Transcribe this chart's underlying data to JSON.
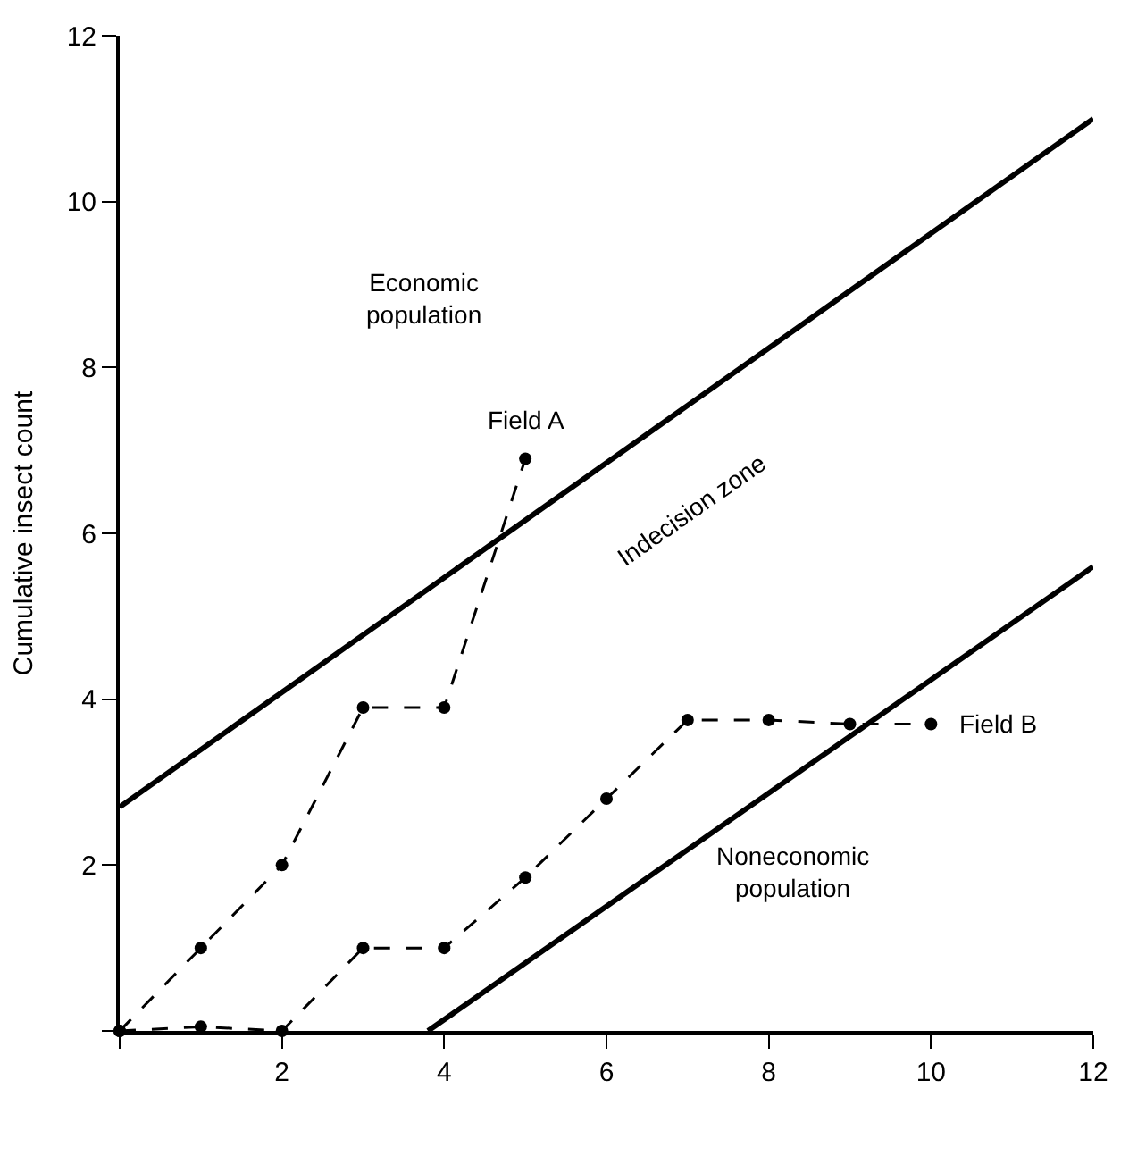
{
  "chart_data": {
    "type": "line",
    "ylabel": "Cumulative insect count",
    "xlim": [
      0,
      12
    ],
    "ylim": [
      0,
      12
    ],
    "xticks": [
      {
        "value": 0,
        "label": null
      },
      2,
      4,
      6,
      8,
      10,
      12
    ],
    "yticks": [
      {
        "value": 0,
        "label": null
      },
      2,
      4,
      6,
      8,
      10,
      12
    ],
    "legend": false,
    "marker": "circle",
    "line_style": "dashed",
    "series": [
      {
        "name": "Field A",
        "color": "#000000",
        "x": [
          0,
          1,
          2,
          3,
          4,
          5
        ],
        "values": [
          0,
          1,
          2,
          3.9,
          3.9,
          6.9
        ]
      },
      {
        "name": "Field B",
        "color": "#000000",
        "x": [
          0,
          1,
          2,
          3,
          4,
          5,
          6,
          7,
          8,
          9,
          10
        ],
        "values": [
          0,
          0.05,
          0,
          1,
          1,
          1.85,
          2.8,
          3.75,
          3.75,
          3.7,
          3.7
        ]
      },
      {
        "color": "#000000",
        "x": [
          0,
          12
        ],
        "values": [
          2.7,
          11
        ],
        "marker": "none",
        "line_style": "solid"
      },
      {
        "color": "#000000",
        "x": [
          3.8,
          12
        ],
        "values": [
          0,
          5.6
        ],
        "marker": "none",
        "line_style": "solid"
      }
    ],
    "annotations": [
      "Economic\npopulation",
      "Indecision zone",
      "Noneconomic\npopulation"
    ]
  }
}
